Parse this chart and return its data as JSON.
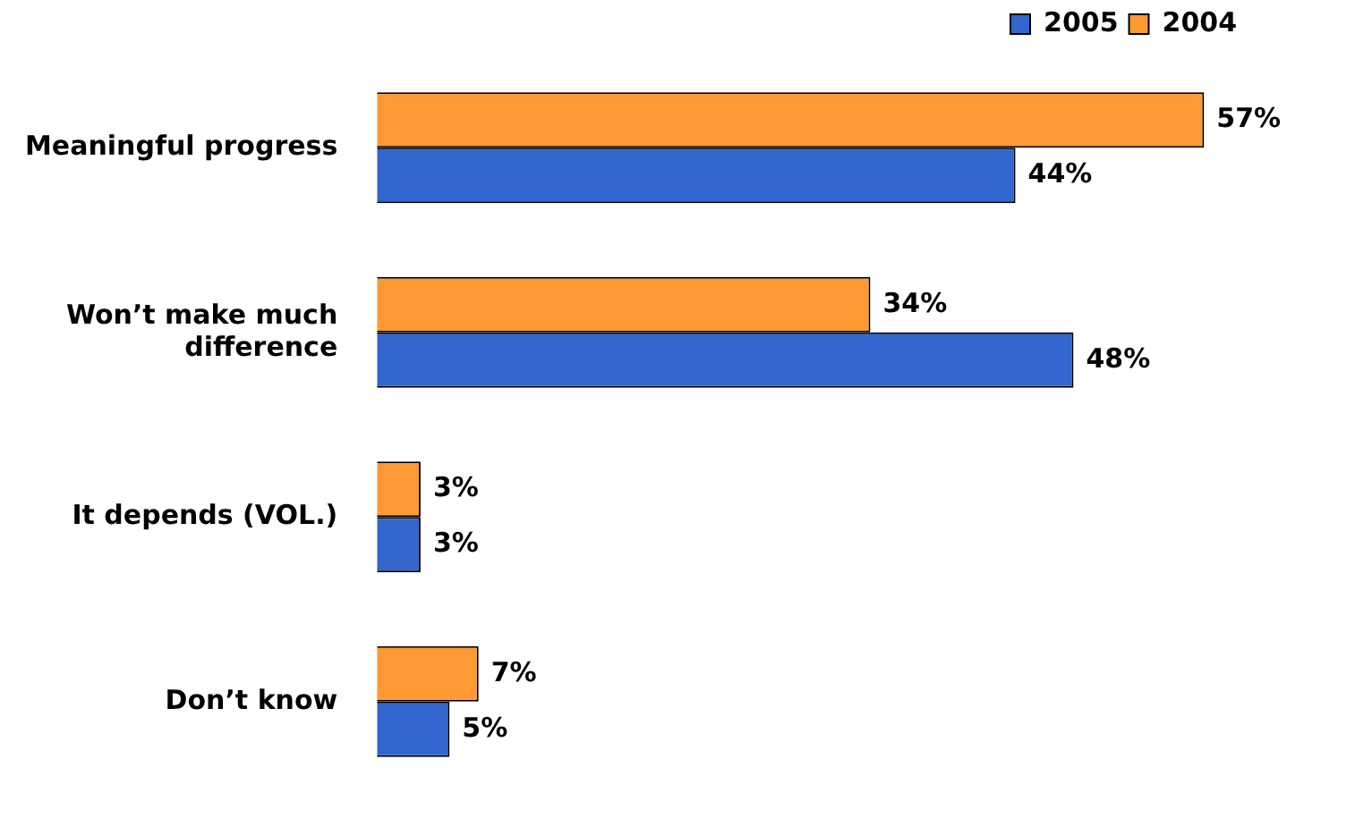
{
  "chart_data": {
    "type": "bar",
    "orientation": "horizontal",
    "categories": [
      "Meaningful progress",
      "Won’t make much difference",
      "It depends (VOL.)",
      "Don’t know"
    ],
    "series": [
      {
        "name": "2004",
        "color": "#ff9933",
        "values": [
          57,
          34,
          3,
          7
        ],
        "value_labels": [
          "57%",
          "34%",
          "3%",
          "7%"
        ]
      },
      {
        "name": "2005",
        "color": "#3366cc",
        "values": [
          44,
          48,
          3,
          5
        ],
        "value_labels": [
          "44%",
          "48%",
          "3%",
          "5%"
        ]
      }
    ],
    "legend": "top right"
  }
}
